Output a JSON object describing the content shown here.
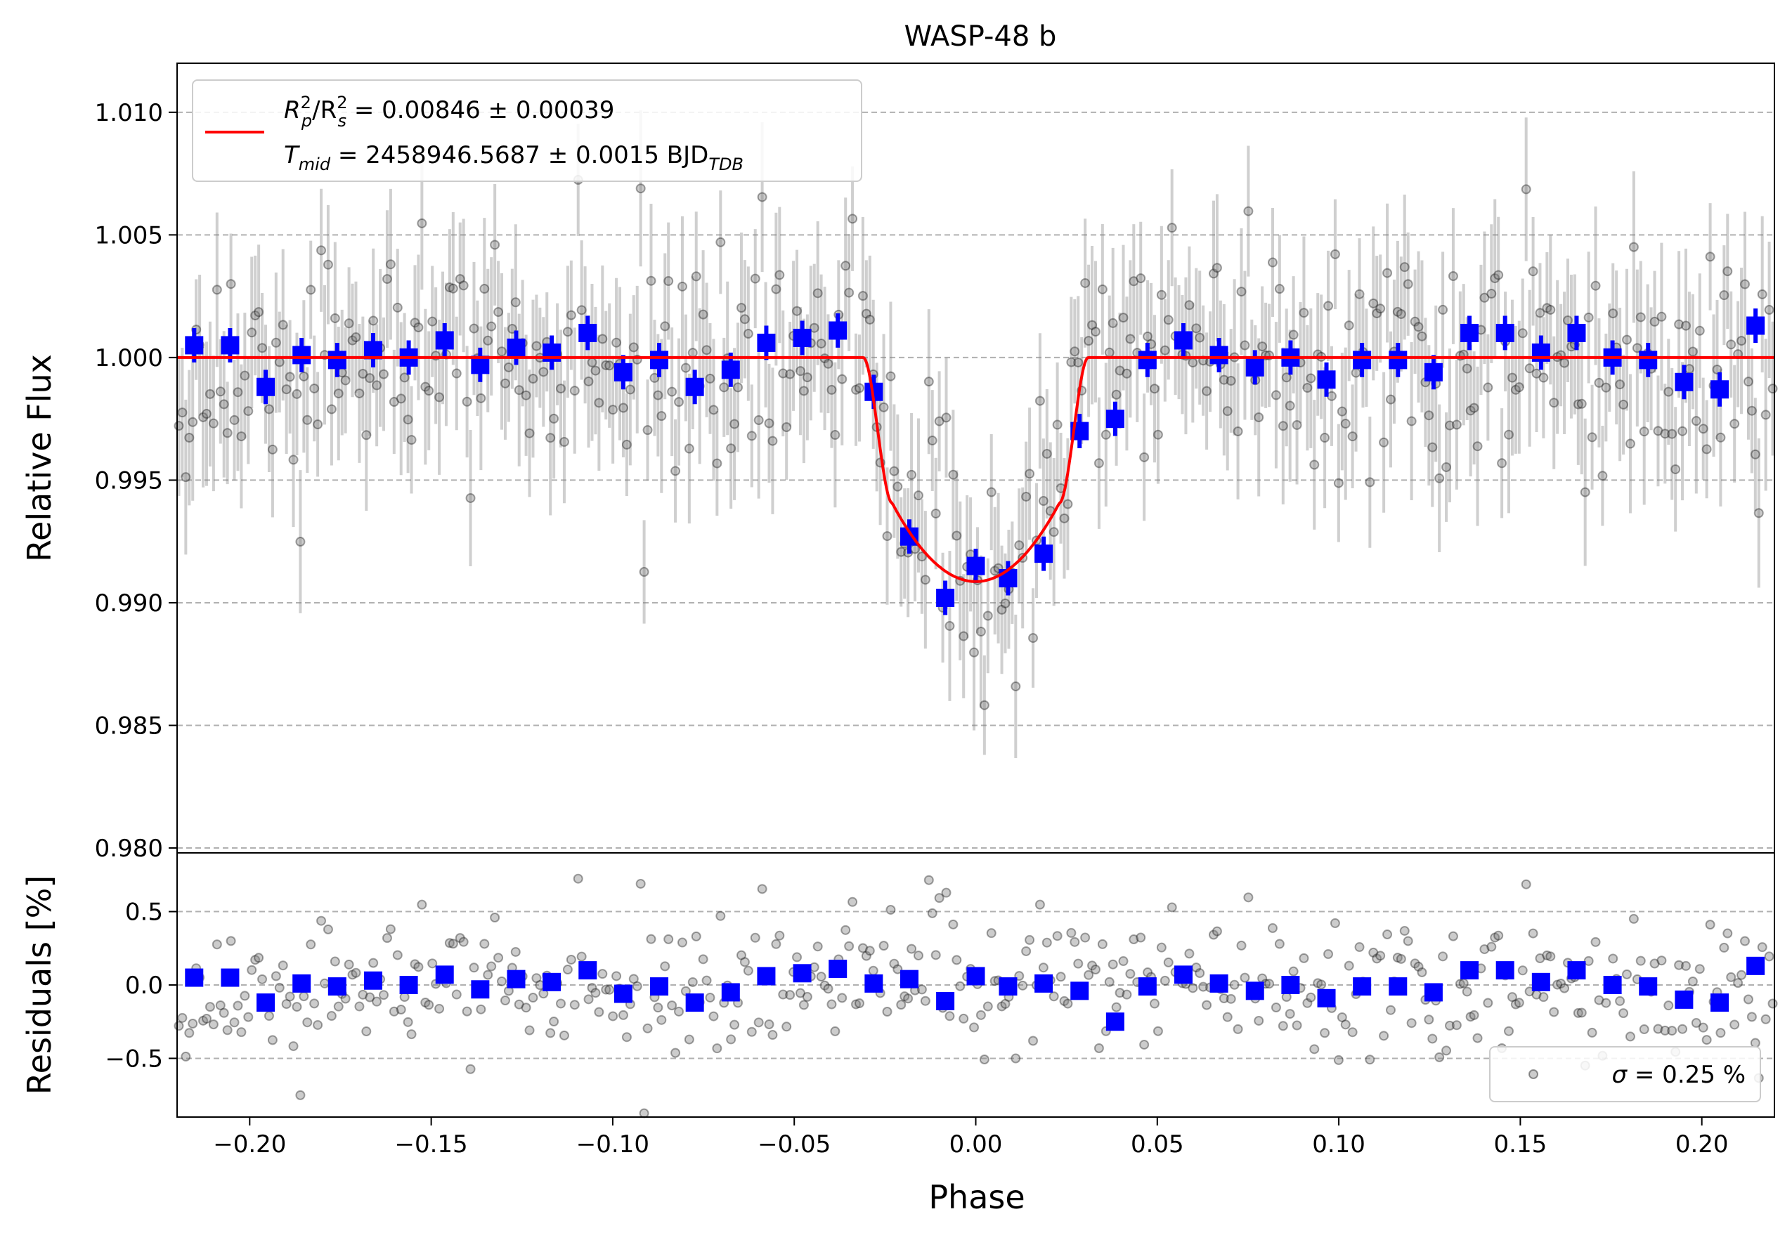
{
  "chart_data": [
    {
      "type": "scatter",
      "panel": "top",
      "title": "WASP-48 b",
      "xlabel": "Phase",
      "ylabel": "Relative Flux",
      "xlim": [
        -0.22,
        0.22
      ],
      "ylim": [
        0.9798,
        1.012
      ],
      "grid": "y-dashed",
      "y_ticks": [
        0.98,
        0.985,
        0.99,
        0.995,
        1.0,
        1.005,
        1.01
      ],
      "y_tick_labels": [
        "0.980",
        "0.985",
        "0.990",
        "0.995",
        "1.000",
        "1.005",
        "1.010"
      ],
      "legend": {
        "placement": "upper-left",
        "entry1": {
          "a": "R",
          "a_sup": "2",
          "a_sub": "p",
          "b": "/R",
          "b_sup": "2",
          "b_sub": "s",
          "value": " = 0.00846 ± 0.00039"
        },
        "entry2": {
          "a": "T",
          "a_sub": "mid",
          "value": " = 2458946.5687 ± 0.0015 BJD",
          "value_sub": "TDB"
        }
      },
      "model": {
        "name": "transit model",
        "color": "#ff0000",
        "depth": 0.00846,
        "baseline": 1.0,
        "t14": 0.062,
        "t23": 0.046,
        "center": 0.0
      },
      "binned": {
        "color": "#0000ff",
        "x": [
          -0.2153,
          -0.2054,
          -0.1956,
          -0.1857,
          -0.1759,
          -0.166,
          -0.1562,
          -0.1463,
          -0.1365,
          -0.1266,
          -0.1168,
          -0.1069,
          -0.0971,
          -0.0872,
          -0.0774,
          -0.0675,
          -0.0577,
          -0.0478,
          -0.038,
          -0.0281,
          -0.0183,
          -0.0084,
          0.0,
          0.0089,
          0.0187,
          0.0286,
          0.0384,
          0.0473,
          0.0572,
          0.067,
          0.0769,
          0.0867,
          0.0966,
          0.1064,
          0.1163,
          0.1261,
          0.136,
          0.1458,
          0.1557,
          0.1655,
          0.1754,
          0.1852,
          0.1951,
          0.2049,
          0.2148
        ],
        "y": [
          1.0005,
          1.0005,
          0.9988,
          1.0001,
          0.9999,
          1.0003,
          1.0,
          1.0007,
          0.9997,
          1.0004,
          1.0002,
          1.001,
          0.9994,
          0.9999,
          0.9988,
          0.9995,
          1.0006,
          1.0008,
          1.0011,
          0.9986,
          0.9927,
          0.9902,
          0.9915,
          0.991,
          0.992,
          0.997,
          0.9975,
          0.9999,
          1.0007,
          1.0001,
          0.9996,
          1.0,
          0.9991,
          0.9999,
          0.9999,
          0.9994,
          1.001,
          1.001,
          1.0002,
          1.001,
          1.0,
          0.9999,
          0.999,
          0.9987,
          1.0013
        ],
        "yerr": 0.0007
      },
      "raw": {
        "color": "#808080",
        "count": 460,
        "noise_sigma": 0.0025,
        "yerr": 0.0025
      }
    },
    {
      "type": "scatter",
      "panel": "bottom",
      "xlabel": "Phase",
      "ylabel": "Residuals [%]",
      "xlim": [
        -0.22,
        0.22
      ],
      "ylim": [
        -0.9,
        0.9
      ],
      "grid": "y-dashed",
      "y_ticks": [
        -0.5,
        0.0,
        0.5
      ],
      "y_tick_labels": [
        "−0.5",
        "0.0",
        "0.5"
      ],
      "x_ticks": [
        -0.2,
        -0.15,
        -0.1,
        -0.05,
        0.0,
        0.05,
        0.1,
        0.15,
        0.2
      ],
      "x_tick_labels": [
        "−0.20",
        "−0.15",
        "−0.10",
        "−0.05",
        "0.00",
        "0.05",
        "0.10",
        "0.15",
        "0.20"
      ],
      "legend": {
        "placement": "lower-right",
        "symbol": "σ",
        "value": " = 0.25 %"
      },
      "binned": {
        "color": "#0000ff",
        "x": [
          -0.2153,
          -0.2054,
          -0.1956,
          -0.1857,
          -0.1759,
          -0.166,
          -0.1562,
          -0.1463,
          -0.1365,
          -0.1266,
          -0.1168,
          -0.1069,
          -0.0971,
          -0.0872,
          -0.0774,
          -0.0675,
          -0.0577,
          -0.0478,
          -0.038,
          -0.0281,
          -0.0183,
          -0.0084,
          0.0,
          0.0089,
          0.0187,
          0.0286,
          0.0384,
          0.0473,
          0.0572,
          0.067,
          0.0769,
          0.0867,
          0.0966,
          0.1064,
          0.1163,
          0.1261,
          0.136,
          0.1458,
          0.1557,
          0.1655,
          0.1754,
          0.1852,
          0.1951,
          0.2049,
          0.2148
        ],
        "y": [
          0.05,
          0.05,
          -0.12,
          0.01,
          -0.01,
          0.03,
          0.0,
          0.07,
          -0.03,
          0.04,
          0.02,
          0.1,
          -0.06,
          -0.01,
          -0.12,
          -0.05,
          0.06,
          0.08,
          0.11,
          0.01,
          0.04,
          -0.11,
          0.06,
          -0.01,
          0.01,
          -0.04,
          -0.25,
          -0.01,
          0.07,
          0.01,
          -0.04,
          0.0,
          -0.09,
          -0.01,
          -0.01,
          -0.05,
          0.1,
          0.1,
          0.02,
          0.1,
          0.0,
          -0.01,
          -0.1,
          -0.12,
          0.13
        ]
      },
      "raw": {
        "color": "#808080",
        "count": 460,
        "noise_sigma": 0.25
      }
    }
  ]
}
